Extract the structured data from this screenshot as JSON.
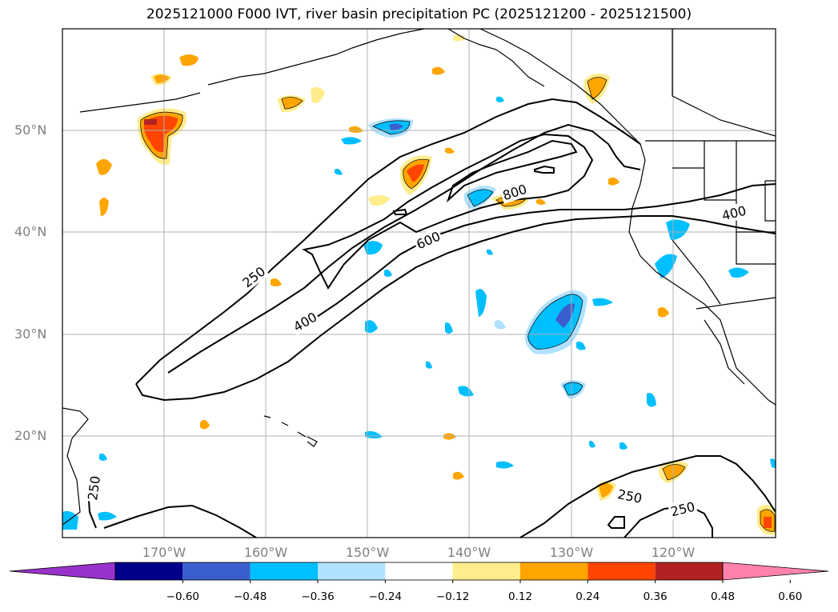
{
  "title": "2025121000 F000 IVT, river basin precipitation PC (2025121200 - 2025121500)",
  "map": {
    "lat_labels": [
      "50°N",
      "40°N",
      "30°N",
      "20°N"
    ],
    "lon_labels": [
      "170°W",
      "160°W",
      "150°W",
      "140°W",
      "130°W",
      "120°W"
    ],
    "ivt_contour_labels": [
      "250",
      "400",
      "600",
      "800",
      "400",
      "250",
      "250",
      "250"
    ],
    "ivt_contour_levels": [
      250,
      400,
      600,
      800
    ]
  },
  "colorbar": {
    "tick_labels": [
      "−0.60",
      "−0.48",
      "−0.36",
      "−0.24",
      "−0.12",
      "0.12",
      "0.24",
      "0.36",
      "0.48",
      "0.60"
    ],
    "colors": [
      "#9932CC",
      "#00008B",
      "#3A5FCD",
      "#00BFFF",
      "#B0E2FF",
      "#FFFFFF",
      "#FFEC8B",
      "#FFA500",
      "#FF4500",
      "#B22222",
      "#FF82AB"
    ]
  },
  "colors": {
    "coast": "#000000",
    "grid": "#b0b0b0",
    "axis_label": "#808080"
  }
}
